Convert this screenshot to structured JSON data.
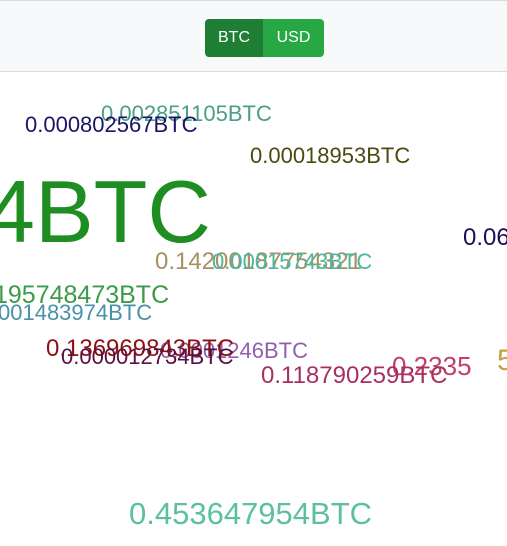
{
  "toolbar": {
    "btc_label": "BTC",
    "usd_label": "USD",
    "colors": {
      "btc_active": "#1e7e34",
      "usd": "#28a745"
    }
  },
  "amounts": [
    {
      "text": "0.002851105BTC",
      "color": "#4a9e8a"
    },
    {
      "text": "0.000802567BTC",
      "color": "#1b1464"
    },
    {
      "text": "0.00018953BTC",
      "color": "#4a4a10"
    },
    {
      "text": "4BTC",
      "color": "#1e8e22"
    },
    {
      "text": "0.06",
      "color": "#1b1052"
    },
    {
      "text": "0.14200187754321",
      "color": "#a89060"
    },
    {
      "text": "0.00015743BTC",
      "color": "#4ab8a0"
    },
    {
      "text": "195748473BTC",
      "color": "#3c9a4a"
    },
    {
      "text": "001483974BTC",
      "color": "#4a90a8"
    },
    {
      "text": "0.136969843BTC",
      "color": "#8b1010"
    },
    {
      "text": "0.000012734BTC",
      "color": "#5a1040"
    },
    {
      "text": "0.0001246BTC",
      "color": "#9060b0"
    },
    {
      "text": "0.2335",
      "color": "#c0406a"
    },
    {
      "text": "5",
      "color": "#c8a040"
    },
    {
      "text": "0.118790259BTC",
      "color": "#a83060"
    },
    {
      "text": "0.453647954BTC",
      "color": "#5cc0a0"
    }
  ]
}
